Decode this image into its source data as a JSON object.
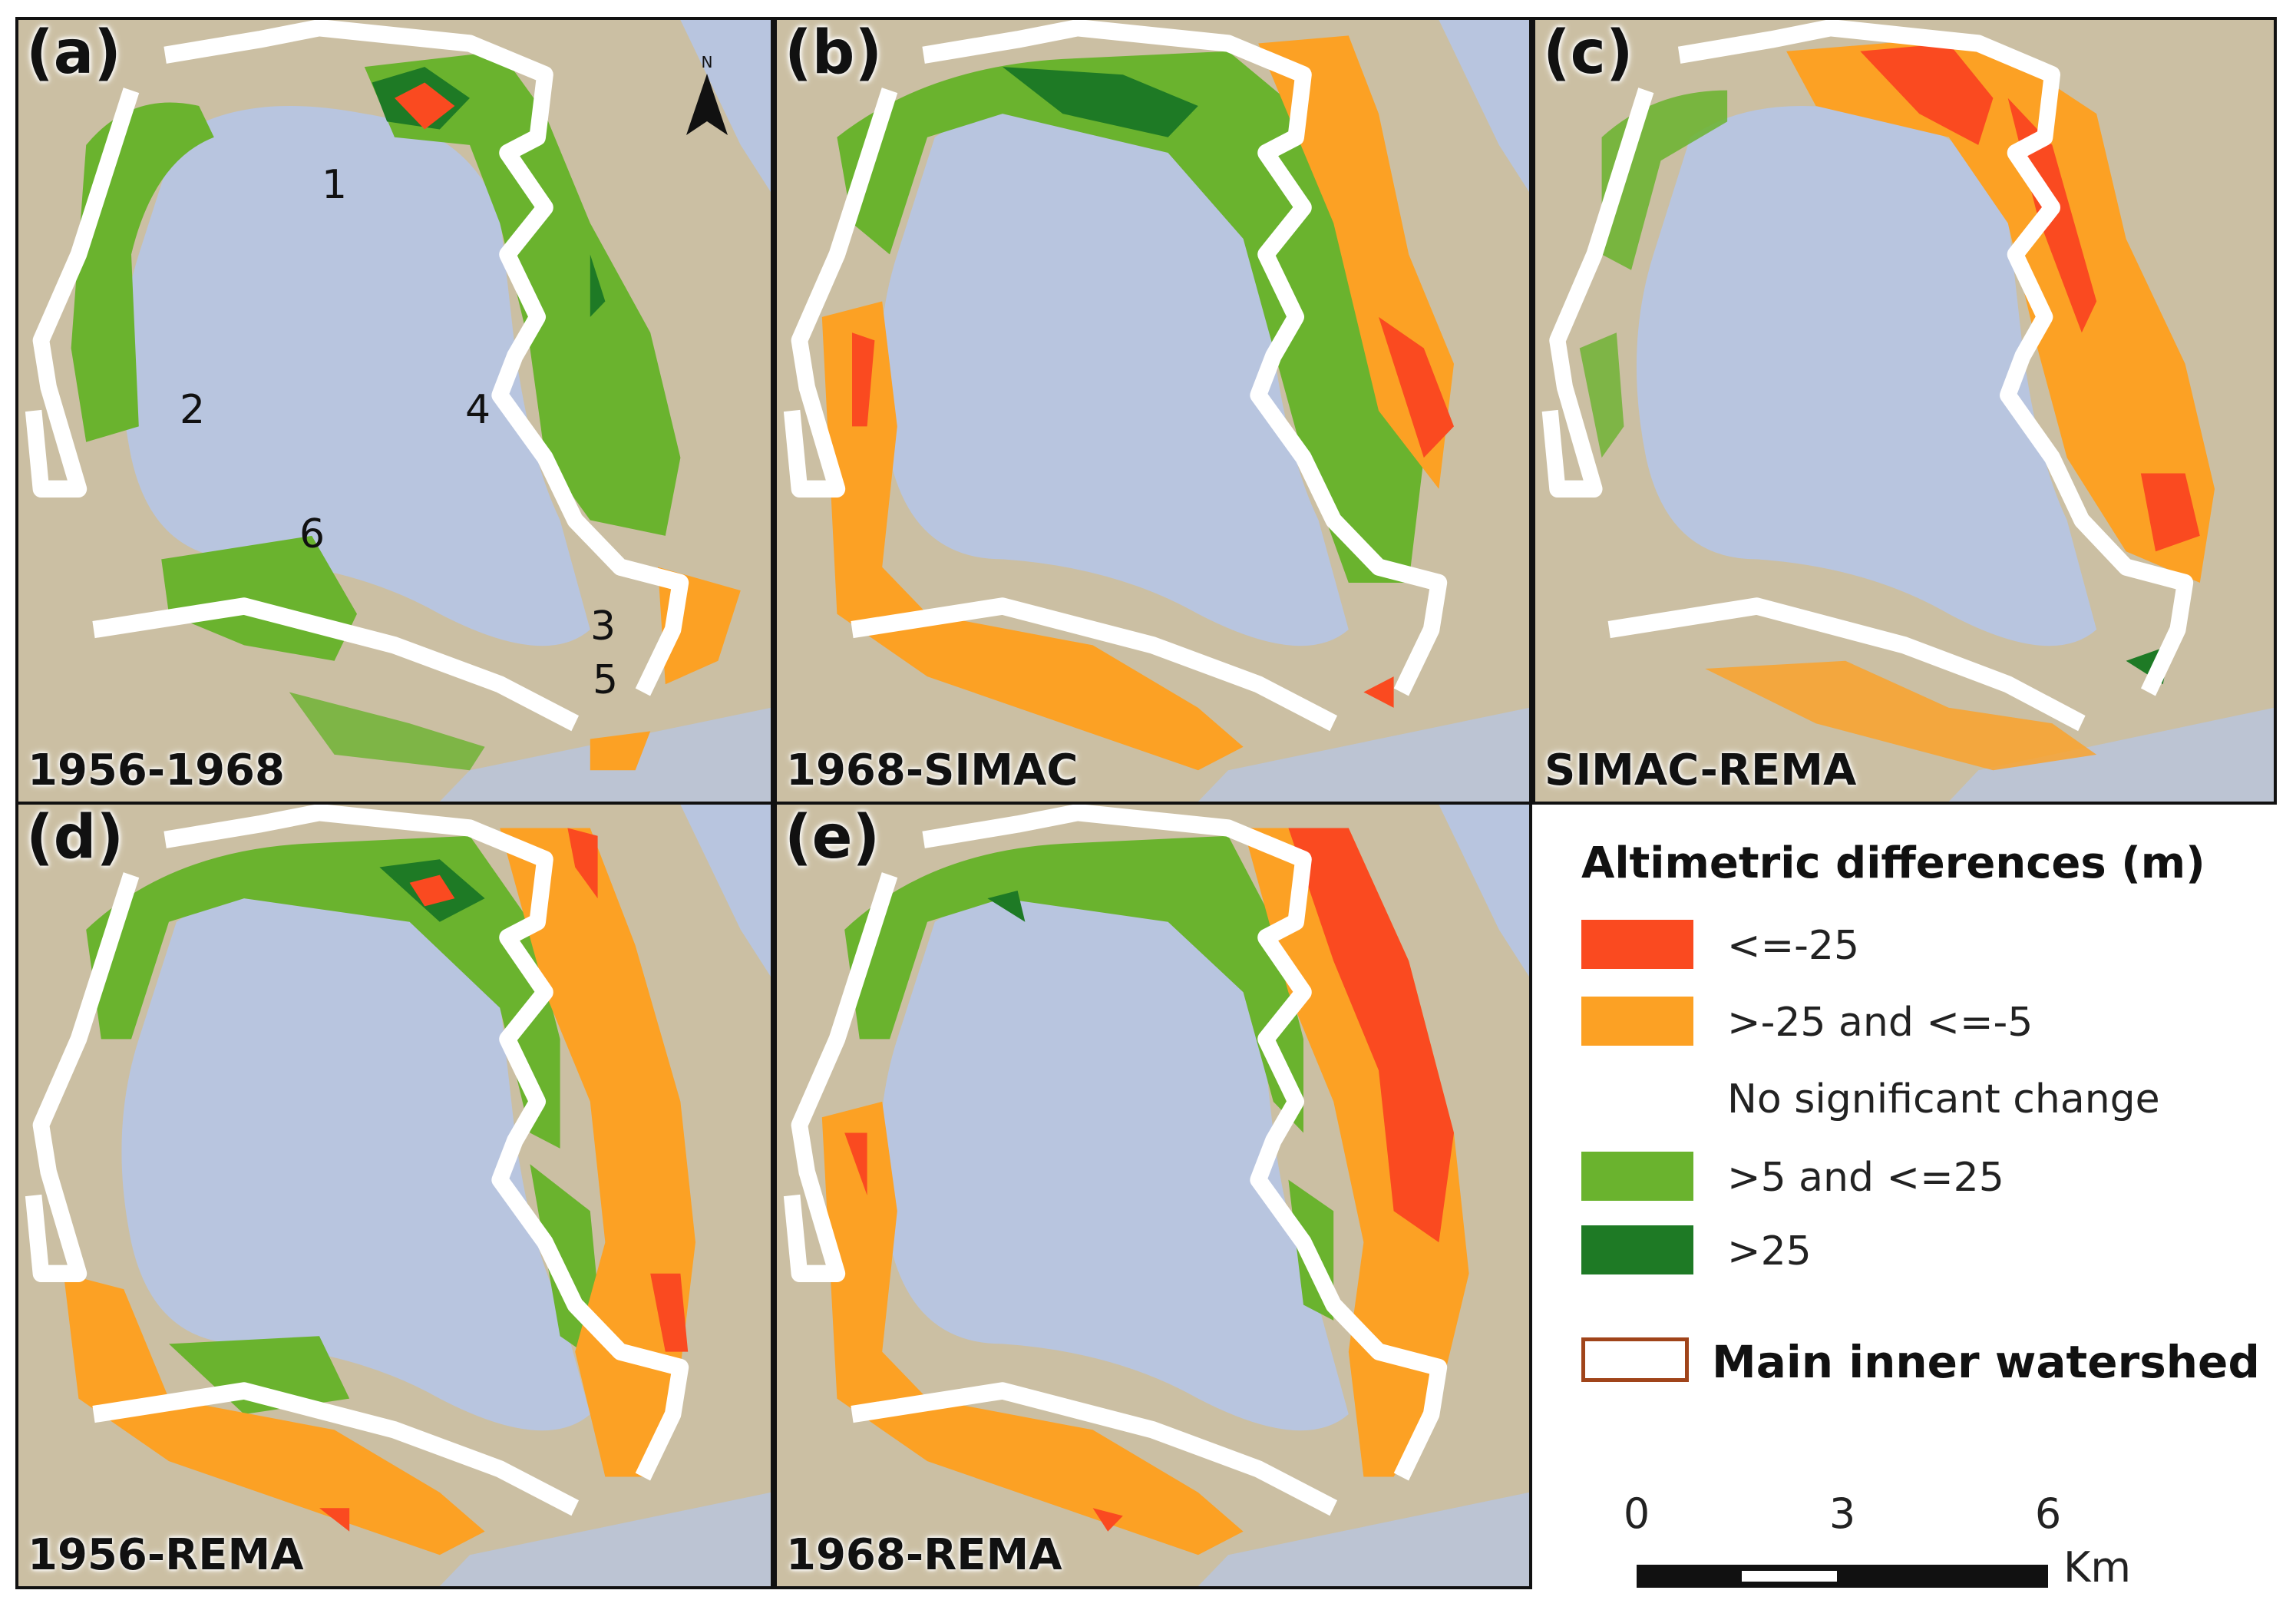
{
  "panels": [
    {
      "letter": "(a)",
      "period": "1956-1968"
    },
    {
      "letter": "(b)",
      "period": "1968-SIMAC"
    },
    {
      "letter": "(c)",
      "period": "SIMAC-REMA"
    },
    {
      "letter": "(d)",
      "period": "1956-REMA"
    },
    {
      "letter": "(e)",
      "period": "1968-REMA"
    }
  ],
  "site_labels": [
    "1",
    "2",
    "3",
    "4",
    "5",
    "6"
  ],
  "north_arrow": {
    "label": "N"
  },
  "legend": {
    "title": "Altimetric differences (m)",
    "items": [
      {
        "label": "<=-25",
        "color": "#fa4a20"
      },
      {
        "label": ">-25 and <=-5",
        "color": "#fca124"
      },
      {
        "label": "No significant change",
        "color": ""
      },
      {
        "label": ">5 and <=25",
        "color": "#6ab32e"
      },
      {
        "label": ">25",
        "color": "#1e7a25"
      }
    ],
    "watershed_label": "Main inner watershed"
  },
  "scale_bar": {
    "ticks": [
      "0",
      "3",
      "6"
    ],
    "unit": "Km"
  },
  "colors": {
    "water": "#b8c5df",
    "terrain": "#cbbfa3",
    "watershed_outline": "#ffffff",
    "loss_strong": "#fa4a20",
    "loss": "#fca124",
    "gain": "#6ab32e",
    "gain_strong": "#1e7a25",
    "legend_watershed_border": "#a0441a"
  }
}
